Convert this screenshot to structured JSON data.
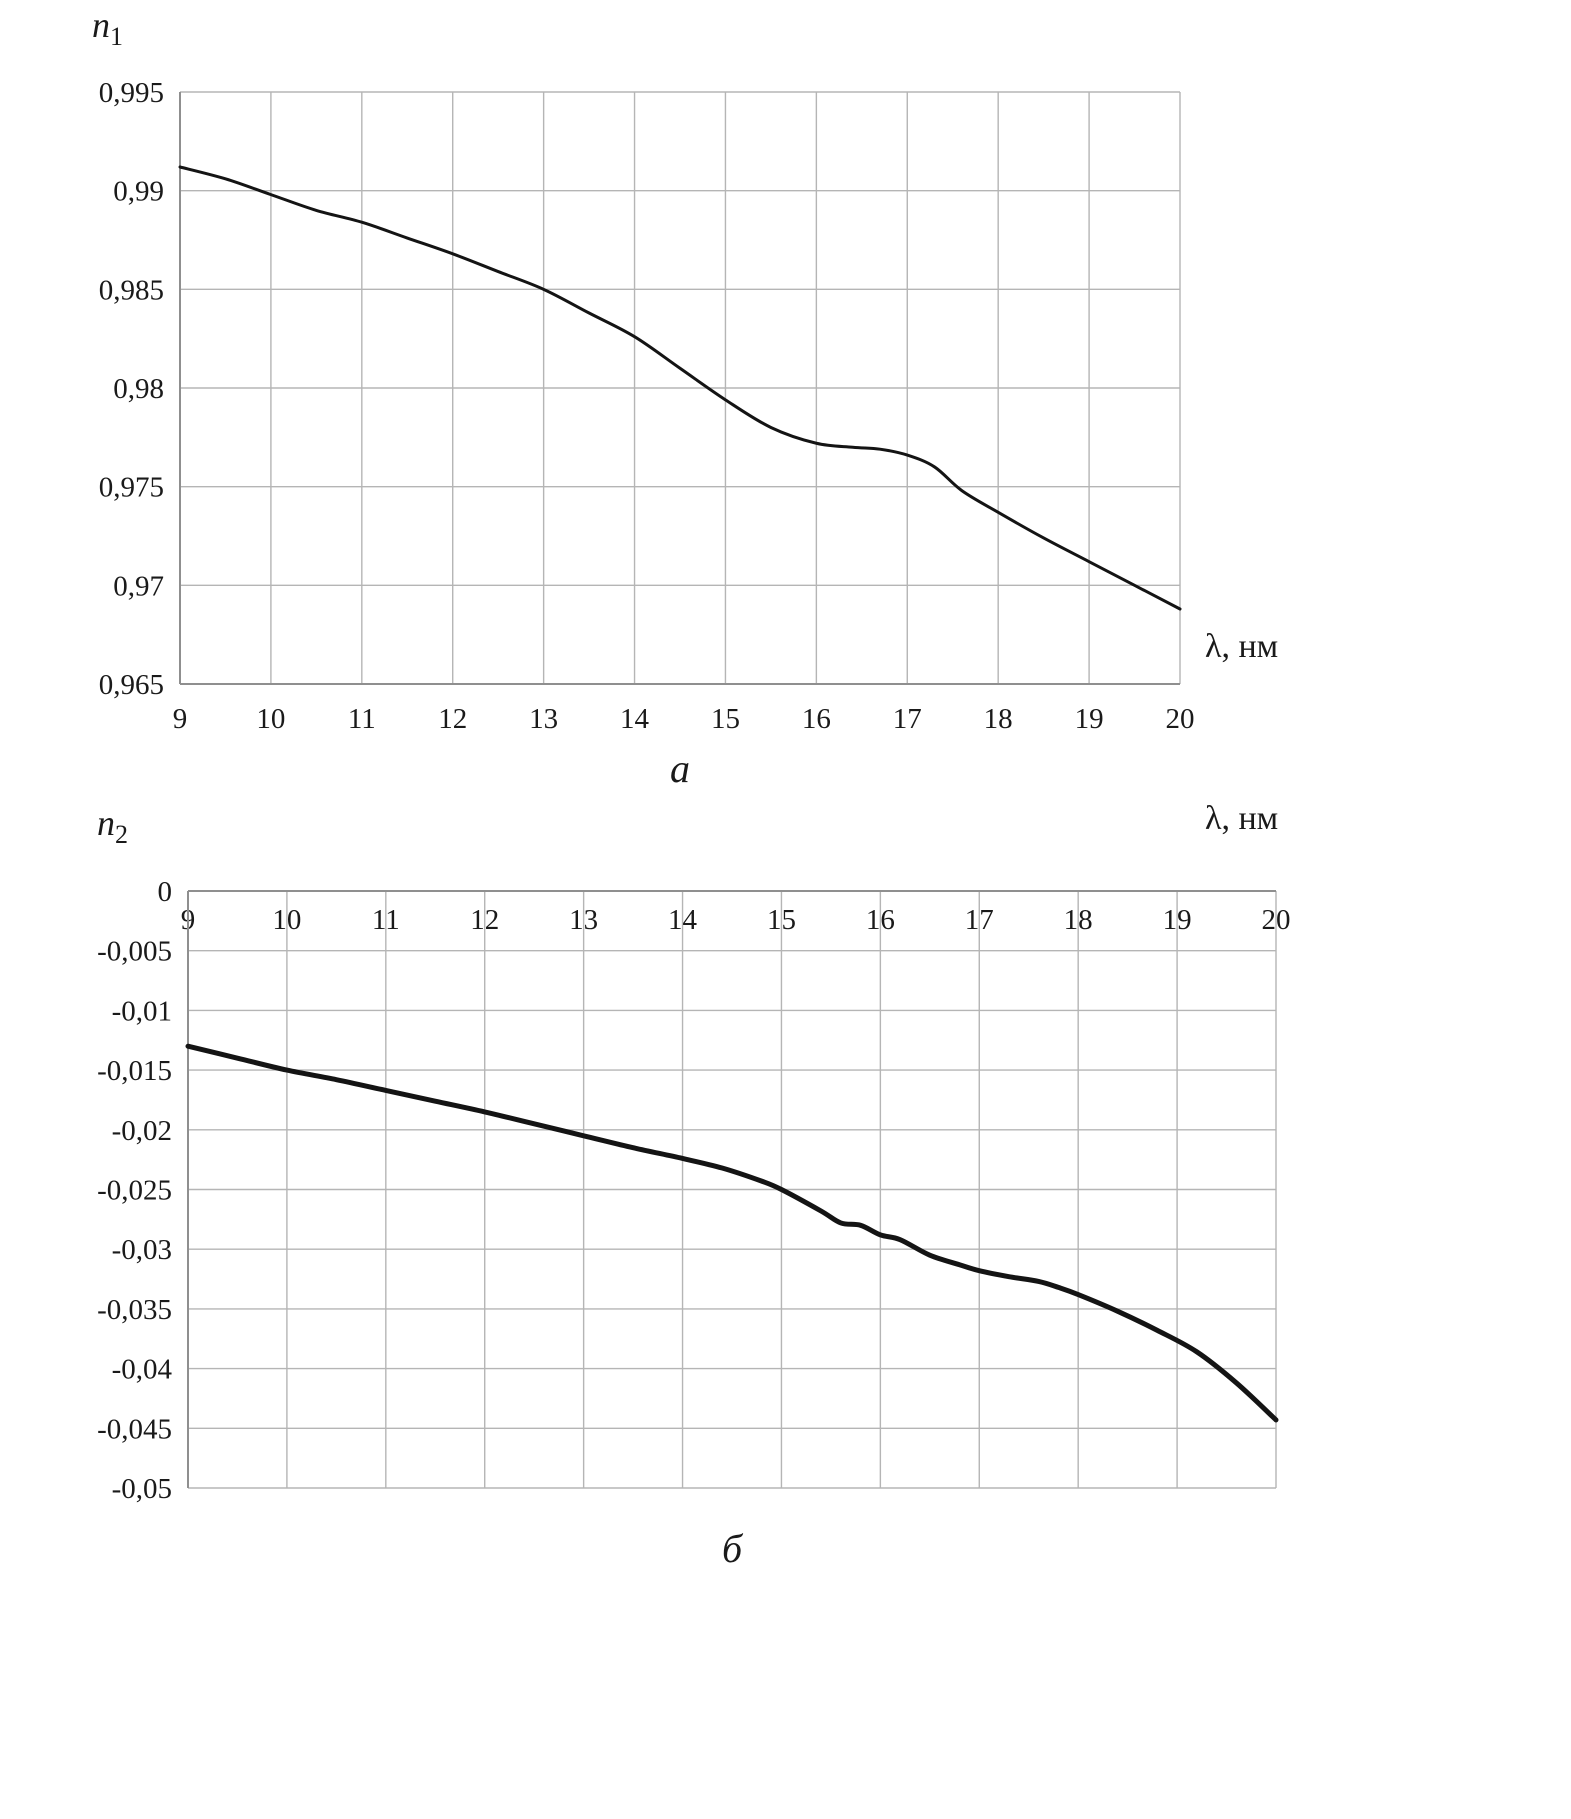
{
  "page": {
    "background": "#ffffff",
    "caption_a": "а",
    "caption_b": "б"
  },
  "titles": {
    "chart_a_y": {
      "base": "n",
      "sub": "1"
    },
    "chart_b_y": {
      "base": "n",
      "sub": "2"
    },
    "chart_a_x": "λ, нм",
    "chart_b_x": "λ, нм"
  },
  "chart_data": [
    {
      "type": "line",
      "id": "a",
      "caption": "а",
      "ylabel": "n1",
      "xlabel": "λ, нм",
      "xmin": 9,
      "xmax": 20,
      "ymin": 0.965,
      "ymax": 0.995,
      "grid": true,
      "x_label_position": "bottom",
      "line_width": 3,
      "line_color": "#141414",
      "x_ticks": [
        9,
        10,
        11,
        12,
        13,
        14,
        15,
        16,
        17,
        18,
        19,
        20
      ],
      "y_ticks": [
        {
          "value": 0.995,
          "label": "0,995"
        },
        {
          "value": 0.99,
          "label": "0,99"
        },
        {
          "value": 0.985,
          "label": "0,985"
        },
        {
          "value": 0.98,
          "label": "0,98"
        },
        {
          "value": 0.975,
          "label": "0,975"
        },
        {
          "value": 0.97,
          "label": "0,97"
        },
        {
          "value": 0.965,
          "label": "0,965"
        }
      ],
      "series": [
        {
          "name": "n1",
          "points": [
            [
              9,
              0.9912
            ],
            [
              9.5,
              0.9906
            ],
            [
              10,
              0.9898
            ],
            [
              10.5,
              0.989
            ],
            [
              11,
              0.9884
            ],
            [
              11.5,
              0.9876
            ],
            [
              12,
              0.9868
            ],
            [
              12.5,
              0.9859
            ],
            [
              13,
              0.985
            ],
            [
              13.5,
              0.9838
            ],
            [
              14,
              0.9826
            ],
            [
              14.5,
              0.981
            ],
            [
              15,
              0.9794
            ],
            [
              15.5,
              0.978
            ],
            [
              16,
              0.9772
            ],
            [
              16.4,
              0.977
            ],
            [
              16.7,
              0.9769
            ],
            [
              17,
              0.9766
            ],
            [
              17.3,
              0.976
            ],
            [
              17.6,
              0.9748
            ],
            [
              18,
              0.9737
            ],
            [
              18.5,
              0.9724
            ],
            [
              19,
              0.9712
            ],
            [
              19.5,
              0.97
            ],
            [
              20,
              0.9688
            ]
          ]
        }
      ]
    },
    {
      "type": "line",
      "id": "b",
      "caption": "б",
      "ylabel": "n2",
      "xlabel": "λ, нм",
      "xmin": 9,
      "xmax": 20,
      "ymin": -0.05,
      "ymax": 0,
      "grid": true,
      "x_label_position": "top",
      "line_width": 5,
      "line_color": "#141414",
      "x_ticks": [
        9,
        10,
        11,
        12,
        13,
        14,
        15,
        16,
        17,
        18,
        19,
        20
      ],
      "y_ticks": [
        {
          "value": 0,
          "label": "0"
        },
        {
          "value": -0.005,
          "label": "-0,005"
        },
        {
          "value": -0.01,
          "label": "-0,01"
        },
        {
          "value": -0.015,
          "label": "-0,015"
        },
        {
          "value": -0.02,
          "label": "-0,02"
        },
        {
          "value": -0.025,
          "label": "-0,025"
        },
        {
          "value": -0.03,
          "label": "-0,03"
        },
        {
          "value": -0.035,
          "label": "-0,035"
        },
        {
          "value": -0.04,
          "label": "-0,04"
        },
        {
          "value": -0.045,
          "label": "-0,045"
        },
        {
          "value": -0.05,
          "label": "-0,05"
        }
      ],
      "series": [
        {
          "name": "n2",
          "points": [
            [
              9,
              -0.013
            ],
            [
              9.5,
              -0.014
            ],
            [
              10,
              -0.015
            ],
            [
              10.5,
              -0.0158
            ],
            [
              11,
              -0.0167
            ],
            [
              11.5,
              -0.0176
            ],
            [
              12,
              -0.0185
            ],
            [
              12.5,
              -0.0195
            ],
            [
              13,
              -0.0205
            ],
            [
              13.5,
              -0.0215
            ],
            [
              14,
              -0.0224
            ],
            [
              14.4,
              -0.0232
            ],
            [
              14.8,
              -0.0243
            ],
            [
              15,
              -0.025
            ],
            [
              15.4,
              -0.0268
            ],
            [
              15.6,
              -0.0278
            ],
            [
              15.8,
              -0.028
            ],
            [
              16,
              -0.0288
            ],
            [
              16.2,
              -0.0292
            ],
            [
              16.5,
              -0.0305
            ],
            [
              16.8,
              -0.0313
            ],
            [
              17,
              -0.0318
            ],
            [
              17.3,
              -0.0323
            ],
            [
              17.6,
              -0.0327
            ],
            [
              17.8,
              -0.0332
            ],
            [
              18,
              -0.0338
            ],
            [
              18.4,
              -0.0352
            ],
            [
              18.8,
              -0.0368
            ],
            [
              19.2,
              -0.0386
            ],
            [
              19.6,
              -0.0412
            ],
            [
              20,
              -0.0443
            ]
          ]
        }
      ]
    }
  ]
}
